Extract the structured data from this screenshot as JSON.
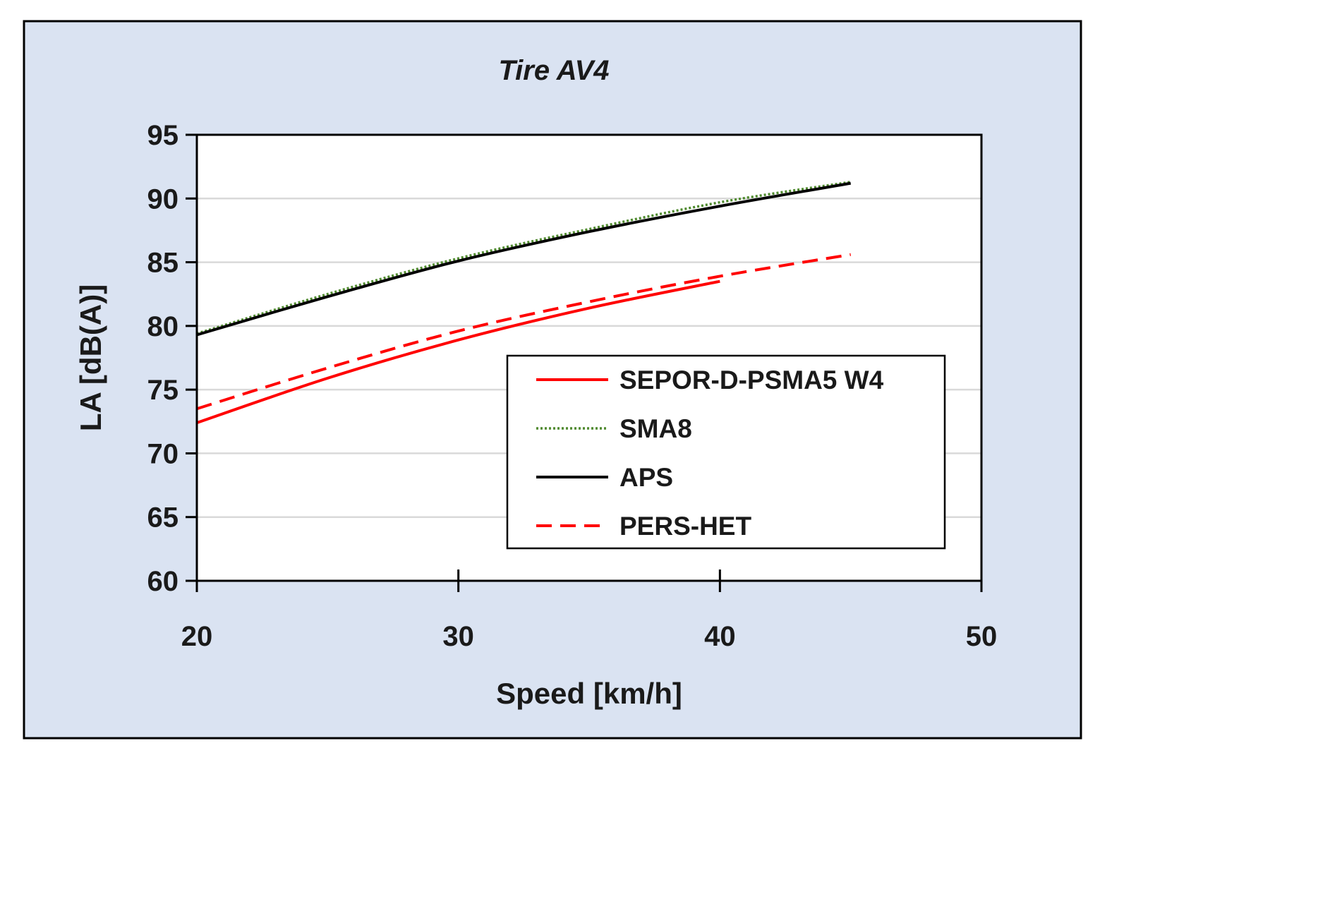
{
  "chart_data": {
    "type": "line",
    "title": "Tire AV4",
    "xlabel": "Speed [km/h]",
    "ylabel": "LA [dB(A)]",
    "xlim": [
      20,
      50
    ],
    "ylim": [
      60,
      95
    ],
    "xticks": [
      20,
      30,
      40,
      50
    ],
    "yticks": [
      60,
      65,
      70,
      75,
      80,
      85,
      90,
      95
    ],
    "grid": "horizontal",
    "legend_position": "lower-right",
    "series": [
      {
        "name": "SEPOR-D-PSMA5 W4",
        "color": "#ff0000",
        "style": "solid",
        "x": [
          20,
          25,
          30,
          35,
          40
        ],
        "y": [
          72.4,
          75.9,
          78.9,
          81.4,
          83.5
        ]
      },
      {
        "name": "SMA8",
        "color": "#4f8a2e",
        "style": "dotted",
        "x": [
          20,
          25,
          30,
          35,
          40,
          45
        ],
        "y": [
          79.4,
          82.5,
          85.3,
          87.6,
          89.7,
          91.3
        ]
      },
      {
        "name": "APS",
        "color": "#000000",
        "style": "solid",
        "x": [
          20,
          25,
          30,
          35,
          40,
          45
        ],
        "y": [
          79.3,
          82.3,
          85.1,
          87.4,
          89.4,
          91.2
        ]
      },
      {
        "name": "PERS-HET",
        "color": "#ff0000",
        "style": "dashed",
        "x": [
          20,
          25,
          30,
          35,
          40,
          45
        ],
        "y": [
          73.5,
          76.7,
          79.6,
          81.9,
          83.9,
          85.6
        ]
      }
    ]
  },
  "colors": {
    "background": "#dae3f2",
    "plot_area": "#ffffff",
    "gridline": "#d9d9d9",
    "axis": "#000000"
  }
}
